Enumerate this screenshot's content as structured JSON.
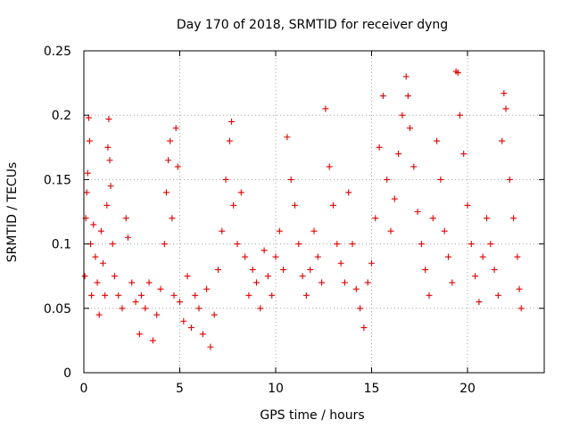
{
  "chart_data": {
    "type": "scatter",
    "title": "Day 170 of 2018, SRMTID for receiver dyng",
    "xlabel": "GPS time / hours",
    "ylabel": "SRMTID / TECUs",
    "xlim": [
      0,
      24
    ],
    "ylim": [
      0,
      0.25
    ],
    "xticks": [
      0,
      5,
      10,
      15,
      20
    ],
    "xtick_labels": [
      "0",
      "5",
      "10",
      "15",
      "20"
    ],
    "yticks": [
      0,
      0.05,
      0.1,
      0.15,
      0.2,
      0.25
    ],
    "ytick_labels": [
      "0",
      "0.05",
      "0.1",
      "0.15",
      "0.2",
      "0.25"
    ],
    "grid": true,
    "marker": "+",
    "series": [
      {
        "name": "dyng",
        "color": "#e00000",
        "points": [
          [
            0.05,
            0.075
          ],
          [
            0.1,
            0.12
          ],
          [
            0.15,
            0.14
          ],
          [
            0.2,
            0.155
          ],
          [
            0.25,
            0.198
          ],
          [
            0.3,
            0.18
          ],
          [
            0.35,
            0.1
          ],
          [
            0.4,
            0.06
          ],
          [
            0.5,
            0.115
          ],
          [
            0.6,
            0.09
          ],
          [
            0.7,
            0.07
          ],
          [
            0.8,
            0.045
          ],
          [
            0.9,
            0.11
          ],
          [
            1.0,
            0.085
          ],
          [
            1.1,
            0.06
          ],
          [
            1.2,
            0.13
          ],
          [
            1.25,
            0.175
          ],
          [
            1.3,
            0.197
          ],
          [
            1.35,
            0.165
          ],
          [
            1.4,
            0.145
          ],
          [
            1.5,
            0.1
          ],
          [
            1.6,
            0.075
          ],
          [
            1.8,
            0.06
          ],
          [
            2.0,
            0.05
          ],
          [
            2.2,
            0.12
          ],
          [
            2.3,
            0.105
          ],
          [
            2.5,
            0.07
          ],
          [
            2.7,
            0.055
          ],
          [
            2.9,
            0.03
          ],
          [
            3.0,
            0.06
          ],
          [
            3.2,
            0.05
          ],
          [
            3.4,
            0.07
          ],
          [
            3.6,
            0.025
          ],
          [
            3.8,
            0.045
          ],
          [
            4.0,
            0.065
          ],
          [
            4.2,
            0.1
          ],
          [
            4.3,
            0.14
          ],
          [
            4.4,
            0.165
          ],
          [
            4.5,
            0.18
          ],
          [
            4.6,
            0.12
          ],
          [
            4.7,
            0.06
          ],
          [
            4.8,
            0.19
          ],
          [
            4.9,
            0.16
          ],
          [
            5.0,
            0.055
          ],
          [
            5.2,
            0.04
          ],
          [
            5.4,
            0.075
          ],
          [
            5.6,
            0.035
          ],
          [
            5.8,
            0.06
          ],
          [
            6.0,
            0.05
          ],
          [
            6.2,
            0.03
          ],
          [
            6.4,
            0.065
          ],
          [
            6.6,
            0.02
          ],
          [
            6.8,
            0.045
          ],
          [
            7.0,
            0.08
          ],
          [
            7.2,
            0.11
          ],
          [
            7.4,
            0.15
          ],
          [
            7.6,
            0.18
          ],
          [
            7.7,
            0.195
          ],
          [
            7.8,
            0.13
          ],
          [
            8.0,
            0.1
          ],
          [
            8.2,
            0.14
          ],
          [
            8.4,
            0.09
          ],
          [
            8.6,
            0.06
          ],
          [
            8.8,
            0.08
          ],
          [
            9.0,
            0.07
          ],
          [
            9.2,
            0.05
          ],
          [
            9.4,
            0.095
          ],
          [
            9.6,
            0.075
          ],
          [
            9.8,
            0.06
          ],
          [
            10.0,
            0.09
          ],
          [
            10.2,
            0.11
          ],
          [
            10.4,
            0.08
          ],
          [
            10.6,
            0.183
          ],
          [
            10.8,
            0.15
          ],
          [
            11.0,
            0.13
          ],
          [
            11.2,
            0.1
          ],
          [
            11.4,
            0.075
          ],
          [
            11.6,
            0.06
          ],
          [
            11.8,
            0.08
          ],
          [
            12.0,
            0.11
          ],
          [
            12.2,
            0.09
          ],
          [
            12.4,
            0.07
          ],
          [
            12.6,
            0.205
          ],
          [
            12.8,
            0.16
          ],
          [
            13.0,
            0.13
          ],
          [
            13.2,
            0.1
          ],
          [
            13.4,
            0.085
          ],
          [
            13.6,
            0.07
          ],
          [
            13.8,
            0.14
          ],
          [
            14.0,
            0.1
          ],
          [
            14.2,
            0.065
          ],
          [
            14.4,
            0.05
          ],
          [
            14.6,
            0.035
          ],
          [
            14.8,
            0.07
          ],
          [
            15.0,
            0.085
          ],
          [
            15.2,
            0.12
          ],
          [
            15.4,
            0.175
          ],
          [
            15.6,
            0.215
          ],
          [
            15.8,
            0.15
          ],
          [
            16.0,
            0.11
          ],
          [
            16.2,
            0.135
          ],
          [
            16.4,
            0.17
          ],
          [
            16.6,
            0.2
          ],
          [
            16.8,
            0.23
          ],
          [
            16.9,
            0.215
          ],
          [
            17.0,
            0.19
          ],
          [
            17.2,
            0.16
          ],
          [
            17.4,
            0.125
          ],
          [
            17.6,
            0.1
          ],
          [
            17.8,
            0.08
          ],
          [
            18.0,
            0.06
          ],
          [
            18.2,
            0.12
          ],
          [
            18.4,
            0.18
          ],
          [
            18.6,
            0.15
          ],
          [
            18.8,
            0.11
          ],
          [
            19.0,
            0.09
          ],
          [
            19.2,
            0.07
          ],
          [
            19.4,
            0.234
          ],
          [
            19.5,
            0.233
          ],
          [
            19.6,
            0.2
          ],
          [
            19.8,
            0.17
          ],
          [
            20.0,
            0.13
          ],
          [
            20.2,
            0.1
          ],
          [
            20.4,
            0.075
          ],
          [
            20.6,
            0.055
          ],
          [
            20.8,
            0.09
          ],
          [
            21.0,
            0.12
          ],
          [
            21.2,
            0.1
          ],
          [
            21.4,
            0.08
          ],
          [
            21.6,
            0.06
          ],
          [
            21.8,
            0.18
          ],
          [
            21.9,
            0.217
          ],
          [
            22.0,
            0.205
          ],
          [
            22.2,
            0.15
          ],
          [
            22.4,
            0.12
          ],
          [
            22.6,
            0.09
          ],
          [
            22.7,
            0.065
          ],
          [
            22.8,
            0.05
          ]
        ]
      }
    ]
  }
}
